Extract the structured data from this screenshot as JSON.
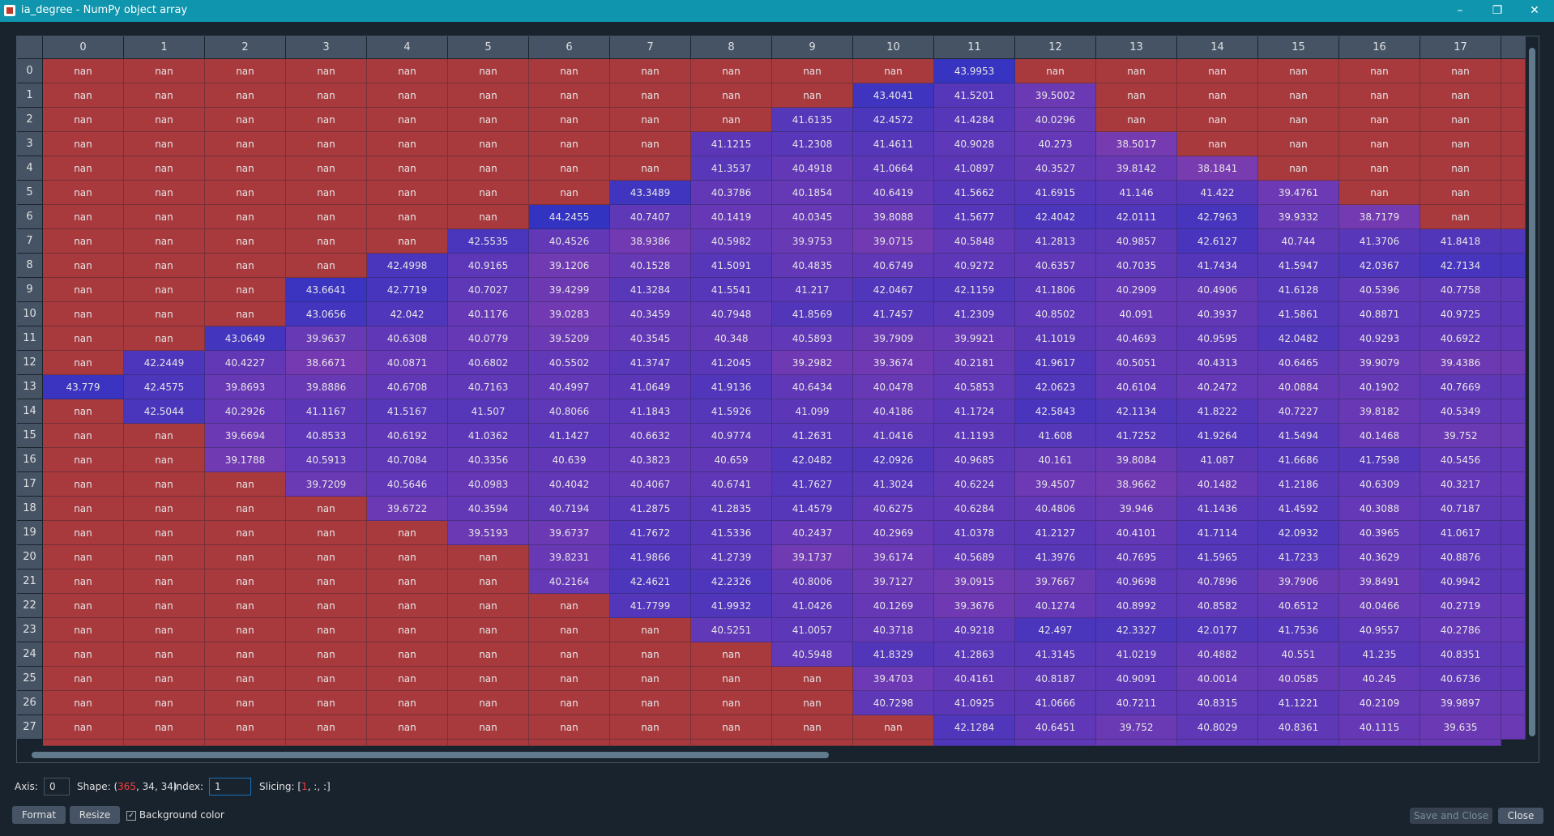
{
  "window": {
    "title": "ia_degree - NumPy object array"
  },
  "table": {
    "columns": [
      "0",
      "1",
      "2",
      "3",
      "4",
      "5",
      "6",
      "7",
      "8",
      "9",
      "10",
      "11",
      "12",
      "13",
      "14",
      "15",
      "16",
      "17"
    ],
    "row_labels": [
      "0",
      "1",
      "2",
      "3",
      "4",
      "5",
      "6",
      "7",
      "8",
      "9",
      "10",
      "11",
      "12",
      "13",
      "14",
      "15",
      "16",
      "17",
      "18",
      "19",
      "20",
      "21",
      "22",
      "23",
      "24",
      "25",
      "26",
      "27"
    ],
    "rows": [
      [
        "nan",
        "nan",
        "nan",
        "nan",
        "nan",
        "nan",
        "nan",
        "nan",
        "nan",
        "nan",
        "nan",
        "43.9953",
        "nan",
        "nan",
        "nan",
        "nan",
        "nan",
        "nan"
      ],
      [
        "nan",
        "nan",
        "nan",
        "nan",
        "nan",
        "nan",
        "nan",
        "nan",
        "nan",
        "nan",
        "43.4041",
        "41.5201",
        "39.5002",
        "nan",
        "nan",
        "nan",
        "nan",
        "nan"
      ],
      [
        "nan",
        "nan",
        "nan",
        "nan",
        "nan",
        "nan",
        "nan",
        "nan",
        "nan",
        "41.6135",
        "42.4572",
        "41.4284",
        "40.0296",
        "nan",
        "nan",
        "nan",
        "nan",
        "nan"
      ],
      [
        "nan",
        "nan",
        "nan",
        "nan",
        "nan",
        "nan",
        "nan",
        "nan",
        "41.1215",
        "41.2308",
        "41.4611",
        "40.9028",
        "40.273",
        "38.5017",
        "nan",
        "nan",
        "nan",
        "nan"
      ],
      [
        "nan",
        "nan",
        "nan",
        "nan",
        "nan",
        "nan",
        "nan",
        "nan",
        "41.3537",
        "40.4918",
        "41.0664",
        "41.0897",
        "40.3527",
        "39.8142",
        "38.1841",
        "nan",
        "nan",
        "nan"
      ],
      [
        "nan",
        "nan",
        "nan",
        "nan",
        "nan",
        "nan",
        "nan",
        "43.3489",
        "40.3786",
        "40.1854",
        "40.6419",
        "41.5662",
        "41.6915",
        "41.146",
        "41.422",
        "39.4761",
        "nan",
        "nan"
      ],
      [
        "nan",
        "nan",
        "nan",
        "nan",
        "nan",
        "nan",
        "44.2455",
        "40.7407",
        "40.1419",
        "40.0345",
        "39.8088",
        "41.5677",
        "42.4042",
        "42.0111",
        "42.7963",
        "39.9332",
        "38.7179",
        "nan"
      ],
      [
        "nan",
        "nan",
        "nan",
        "nan",
        "nan",
        "42.5535",
        "40.4526",
        "38.9386",
        "40.5982",
        "39.9753",
        "39.0715",
        "40.5848",
        "41.2813",
        "40.9857",
        "42.6127",
        "40.744",
        "41.3706",
        "41.8418"
      ],
      [
        "nan",
        "nan",
        "nan",
        "nan",
        "42.4998",
        "40.9165",
        "39.1206",
        "40.1528",
        "41.5091",
        "40.4835",
        "40.6749",
        "40.9272",
        "40.6357",
        "40.7035",
        "41.7434",
        "41.5947",
        "42.0367",
        "42.7134"
      ],
      [
        "nan",
        "nan",
        "nan",
        "43.6641",
        "42.7719",
        "40.7027",
        "39.4299",
        "41.3284",
        "41.5541",
        "41.217",
        "42.0467",
        "42.1159",
        "41.1806",
        "40.2909",
        "40.4906",
        "41.6128",
        "40.5396",
        "40.7758"
      ],
      [
        "nan",
        "nan",
        "nan",
        "43.0656",
        "42.042",
        "40.1176",
        "39.0283",
        "40.3459",
        "40.7948",
        "41.8569",
        "41.7457",
        "41.2309",
        "40.8502",
        "40.091",
        "40.3937",
        "41.5861",
        "40.8871",
        "40.9725"
      ],
      [
        "nan",
        "nan",
        "43.0649",
        "39.9637",
        "40.6308",
        "40.0779",
        "39.5209",
        "40.3545",
        "40.348",
        "40.5893",
        "39.7909",
        "39.9921",
        "41.1019",
        "40.4693",
        "40.9595",
        "42.0482",
        "40.9293",
        "40.6922"
      ],
      [
        "nan",
        "42.2449",
        "40.4227",
        "38.6671",
        "40.0871",
        "40.6802",
        "40.5502",
        "41.3747",
        "41.2045",
        "39.2982",
        "39.3674",
        "40.2181",
        "41.9617",
        "40.5051",
        "40.4313",
        "40.6465",
        "39.9079",
        "39.4386"
      ],
      [
        "43.779",
        "42.4575",
        "39.8693",
        "39.8886",
        "40.6708",
        "40.7163",
        "40.4997",
        "41.0649",
        "41.9136",
        "40.6434",
        "40.0478",
        "40.5853",
        "42.0623",
        "40.6104",
        "40.2472",
        "40.0884",
        "40.1902",
        "40.7669"
      ],
      [
        "nan",
        "42.5044",
        "40.2926",
        "41.1167",
        "41.5167",
        "41.507",
        "40.8066",
        "41.1843",
        "41.5926",
        "41.099",
        "40.4186",
        "41.1724",
        "42.5843",
        "42.1134",
        "41.8222",
        "40.7227",
        "39.8182",
        "40.5349"
      ],
      [
        "nan",
        "nan",
        "39.6694",
        "40.8533",
        "40.6192",
        "41.0362",
        "41.1427",
        "40.6632",
        "40.9774",
        "41.2631",
        "41.0416",
        "41.1193",
        "41.608",
        "41.7252",
        "41.9264",
        "41.5494",
        "40.1468",
        "39.752"
      ],
      [
        "nan",
        "nan",
        "39.1788",
        "40.5913",
        "40.7084",
        "40.3356",
        "40.639",
        "40.3823",
        "40.659",
        "42.0482",
        "42.0926",
        "40.9685",
        "40.161",
        "39.8084",
        "41.087",
        "41.6686",
        "41.7598",
        "40.5456"
      ],
      [
        "nan",
        "nan",
        "nan",
        "39.7209",
        "40.5646",
        "40.0983",
        "40.4042",
        "40.4067",
        "40.6741",
        "41.7627",
        "41.3024",
        "40.6224",
        "39.4507",
        "38.9662",
        "40.1482",
        "41.2186",
        "40.6309",
        "40.3217"
      ],
      [
        "nan",
        "nan",
        "nan",
        "nan",
        "39.6722",
        "40.3594",
        "40.7194",
        "41.2875",
        "41.2835",
        "41.4579",
        "40.6275",
        "40.6284",
        "40.4806",
        "39.946",
        "41.1436",
        "41.4592",
        "40.3088",
        "40.7187"
      ],
      [
        "nan",
        "nan",
        "nan",
        "nan",
        "nan",
        "39.5193",
        "39.6737",
        "41.7672",
        "41.5336",
        "40.2437",
        "40.2969",
        "41.0378",
        "41.2127",
        "40.4101",
        "41.7114",
        "42.0932",
        "40.3965",
        "41.0617"
      ],
      [
        "nan",
        "nan",
        "nan",
        "nan",
        "nan",
        "nan",
        "39.8231",
        "41.9866",
        "41.2739",
        "39.1737",
        "39.6174",
        "40.5689",
        "41.3976",
        "40.7695",
        "41.5965",
        "41.7233",
        "40.3629",
        "40.8876"
      ],
      [
        "nan",
        "nan",
        "nan",
        "nan",
        "nan",
        "nan",
        "40.2164",
        "42.4621",
        "42.2326",
        "40.8006",
        "39.7127",
        "39.0915",
        "39.7667",
        "40.9698",
        "40.7896",
        "39.7906",
        "39.8491",
        "40.9942"
      ],
      [
        "nan",
        "nan",
        "nan",
        "nan",
        "nan",
        "nan",
        "nan",
        "41.7799",
        "41.9932",
        "41.0426",
        "40.1269",
        "39.3676",
        "40.1274",
        "40.8992",
        "40.8582",
        "40.6512",
        "40.0466",
        "40.2719"
      ],
      [
        "nan",
        "nan",
        "nan",
        "nan",
        "nan",
        "nan",
        "nan",
        "nan",
        "40.5251",
        "41.0057",
        "40.3718",
        "40.9218",
        "42.497",
        "42.3327",
        "42.0177",
        "41.7536",
        "40.9557",
        "40.2786"
      ],
      [
        "nan",
        "nan",
        "nan",
        "nan",
        "nan",
        "nan",
        "nan",
        "nan",
        "nan",
        "40.5948",
        "41.8329",
        "41.2863",
        "41.3145",
        "41.0219",
        "40.4882",
        "40.551",
        "41.235",
        "40.8351"
      ],
      [
        "nan",
        "nan",
        "nan",
        "nan",
        "nan",
        "nan",
        "nan",
        "nan",
        "nan",
        "nan",
        "39.4703",
        "40.4161",
        "40.8187",
        "40.9091",
        "40.0014",
        "40.0585",
        "40.245",
        "40.6736"
      ],
      [
        "nan",
        "nan",
        "nan",
        "nan",
        "nan",
        "nan",
        "nan",
        "nan",
        "nan",
        "nan",
        "40.7298",
        "41.0925",
        "41.0666",
        "40.7211",
        "40.8315",
        "41.1221",
        "40.2109",
        "39.9897"
      ],
      [
        "nan",
        "nan",
        "nan",
        "nan",
        "nan",
        "nan",
        "nan",
        "nan",
        "nan",
        "nan",
        "nan",
        "42.1284",
        "40.6451",
        "39.752",
        "40.8029",
        "40.8361",
        "40.1115",
        "39.635"
      ]
    ]
  },
  "controls": {
    "axis_label": "Axis:",
    "axis_value": "0",
    "shape_label": "Shape:",
    "shape_open": "(",
    "shape_first": "365",
    "shape_rest": ", 34, 34)",
    "index_label": "Index:",
    "index_value": "1",
    "slicing_label": "Slicing:",
    "slicing_open": "[",
    "slicing_index": "1",
    "slicing_rest": ", :, :]"
  },
  "buttons": {
    "format": "Format",
    "resize": "Resize",
    "background_color": "Background color",
    "save_and_close": "Save and Close",
    "close": "Close"
  }
}
